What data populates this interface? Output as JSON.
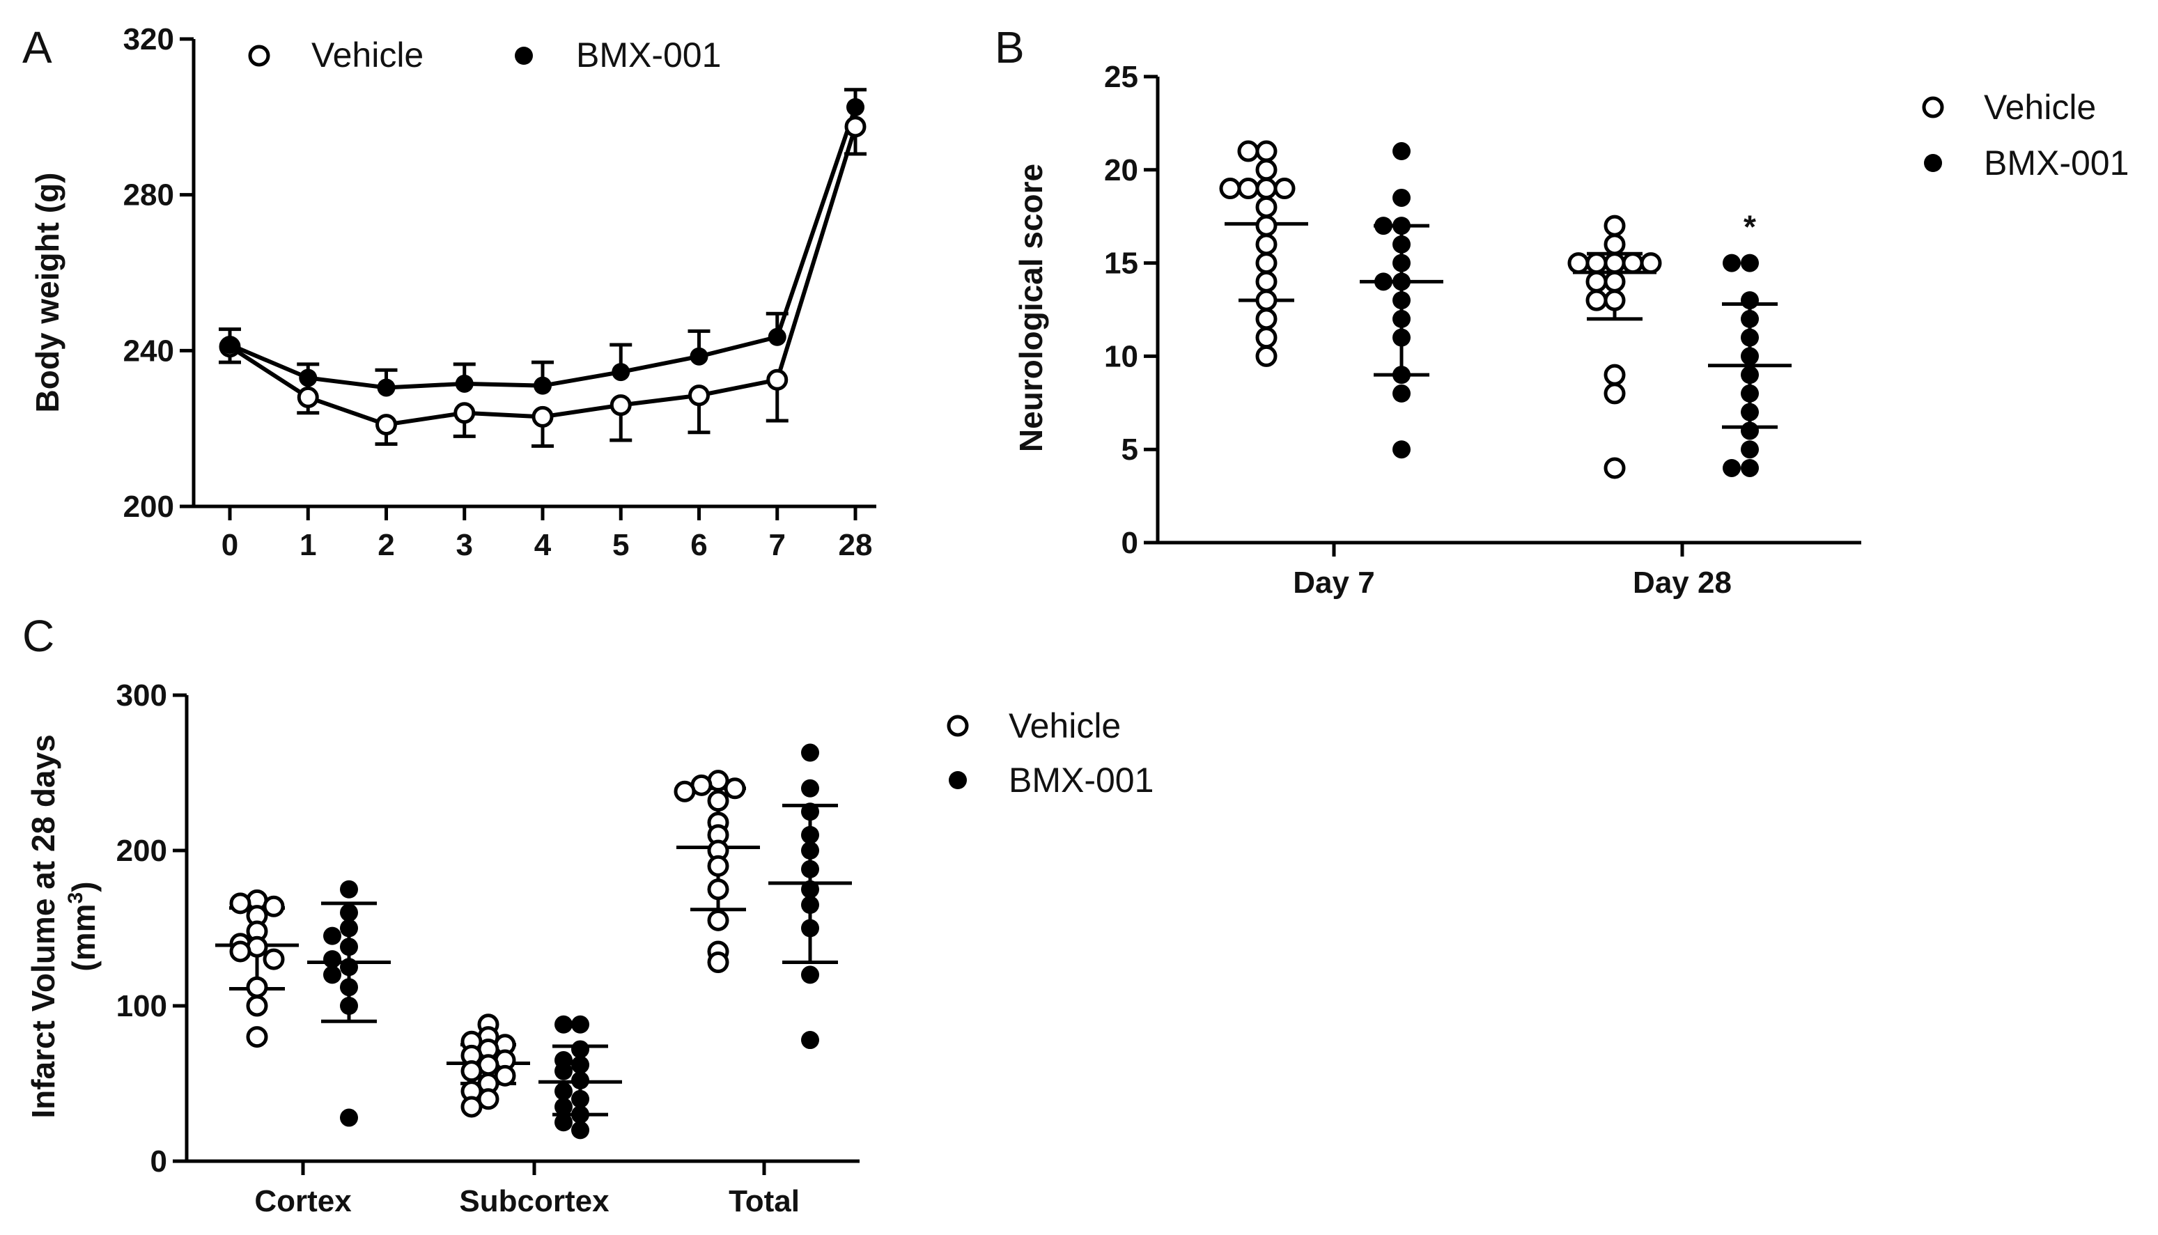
{
  "panels": {
    "A": "A",
    "B": "B",
    "C": "C"
  },
  "legend": {
    "vehicle": "Vehicle",
    "bmx": "BMX-001"
  },
  "chart_data": [
    {
      "id": "A",
      "type": "line",
      "title": "",
      "xlabel": "",
      "ylabel": "Body weight (g)",
      "categories": [
        "0",
        "1",
        "2",
        "3",
        "4",
        "5",
        "6",
        "7",
        "28"
      ],
      "ylim": [
        200,
        320
      ],
      "yticks": [
        200,
        240,
        280,
        320
      ],
      "legend_position": "top",
      "series": [
        {
          "name": "Vehicle",
          "marker": "open-circle",
          "values": [
            241,
            228,
            221,
            224,
            223,
            226,
            228.5,
            232.5,
            297.5
          ],
          "err": [
            4,
            4,
            5,
            6,
            7.5,
            9,
            9.5,
            10.5,
            7
          ]
        },
        {
          "name": "BMX-001",
          "marker": "filled-circle",
          "values": [
            241.5,
            233,
            230.5,
            231.5,
            231,
            234.5,
            238.5,
            243.5,
            302.5
          ],
          "err": [
            4,
            3.5,
            4.5,
            5,
            6,
            7,
            6.5,
            6,
            4.5
          ]
        }
      ]
    },
    {
      "id": "B",
      "type": "scatter",
      "title": "",
      "xlabel": "",
      "ylabel": "Neurological score",
      "categories": [
        "Day 7",
        "Day 28"
      ],
      "ylim": [
        0,
        25
      ],
      "yticks": [
        0,
        5,
        10,
        15,
        20,
        25
      ],
      "legend_position": "top-right",
      "annotations": [
        {
          "text": "*",
          "group": "Day 28",
          "series": "BMX-001"
        }
      ],
      "series": [
        {
          "name": "Vehicle",
          "marker": "open-circle",
          "points": [
            [
              [
                21,
                21,
                20,
                19,
                19,
                19,
                19,
                18,
                17,
                16,
                15,
                14,
                13,
                12,
                11,
                10
              ],
              17.1,
              13.0,
              19.0
            ],
            [
              [
                17,
                16,
                15,
                15,
                15,
                15,
                15,
                14,
                14,
                13,
                13,
                9,
                8,
                4
              ],
              14.5,
              12.0,
              15.5
            ]
          ]
        },
        {
          "name": "BMX-001",
          "marker": "filled-circle",
          "points": [
            [
              [
                21,
                18.5,
                17,
                17,
                16,
                15,
                14,
                14,
                13,
                12,
                11,
                9,
                8,
                5
              ],
              14.0,
              9.0,
              17.0
            ],
            [
              [
                15,
                15,
                13,
                12,
                11,
                10,
                9,
                8,
                7,
                6,
                5,
                4,
                4
              ],
              9.5,
              6.2,
              12.8
            ]
          ]
        }
      ],
      "point_fields": [
        "values",
        "mean",
        "sd_low",
        "sd_high"
      ]
    },
    {
      "id": "C",
      "type": "scatter",
      "title": "",
      "xlabel": "",
      "ylabel": "Infarct Volume at 28 days (mm3)",
      "ylabel_line1": "Infarct Volume at 28 days",
      "ylabel_line2_base": "(mm",
      "ylabel_line2_sup": "3",
      "ylabel_line2_end": ")",
      "categories": [
        "Cortex",
        "Subcortex",
        "Total"
      ],
      "ylim": [
        0,
        300
      ],
      "yticks": [
        0,
        100,
        200,
        300
      ],
      "legend_position": "top-right",
      "series": [
        {
          "name": "Vehicle",
          "marker": "open-circle",
          "points": [
            [
              [
                168,
                166,
                164,
                158,
                148,
                140,
                138,
                135,
                130,
                112,
                100,
                80
              ],
              139,
              111,
              163
            ],
            [
              [
                88,
                80,
                77,
                75,
                72,
                68,
                65,
                62,
                58,
                55,
                50,
                45,
                40,
                35
              ],
              63,
              50,
              75
            ],
            [
              [
                245,
                242,
                240,
                238,
                232,
                218,
                210,
                200,
                190,
                175,
                155,
                135,
                128
              ],
              202,
              162,
              240
            ]
          ]
        },
        {
          "name": "BMX-001",
          "marker": "filled-circle",
          "points": [
            [
              [
                175,
                160,
                150,
                145,
                138,
                130,
                125,
                120,
                112,
                100,
                28
              ],
              128,
              90,
              166
            ],
            [
              [
                88,
                88,
                72,
                65,
                62,
                58,
                52,
                45,
                40,
                35,
                30,
                25,
                20
              ],
              51,
              30,
              74
            ],
            [
              [
                263,
                240,
                225,
                210,
                200,
                188,
                175,
                165,
                150,
                120,
                78
              ],
              179,
              128,
              229
            ]
          ]
        }
      ],
      "point_fields": [
        "values",
        "mean",
        "sd_low",
        "sd_high"
      ]
    }
  ]
}
